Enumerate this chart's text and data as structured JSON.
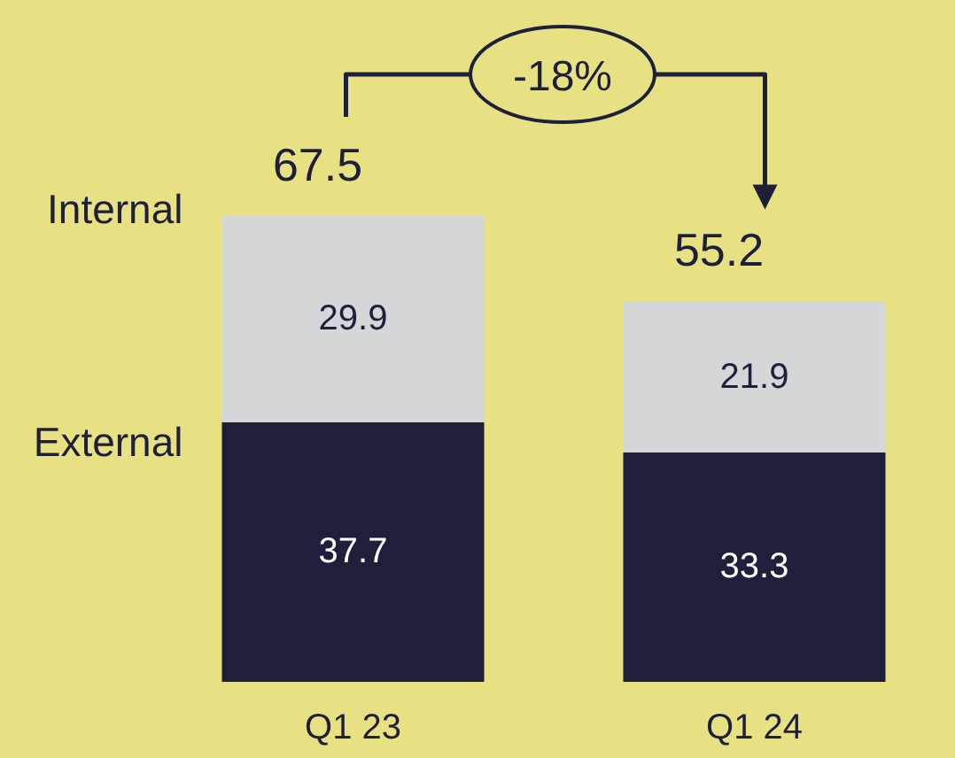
{
  "chart_data": {
    "type": "bar",
    "stacked": true,
    "categories": [
      "Q1 23",
      "Q1 24"
    ],
    "series": [
      {
        "name": "External",
        "color": "#1e1f3b",
        "values": [
          37.7,
          33.3
        ]
      },
      {
        "name": "Internal",
        "color": "#d5d6d8",
        "values": [
          29.9,
          21.9
        ]
      }
    ],
    "data_labels": true,
    "totals": [
      "67.5",
      "55.2"
    ],
    "annotations": [
      "-18%"
    ],
    "legend": false
  }
}
